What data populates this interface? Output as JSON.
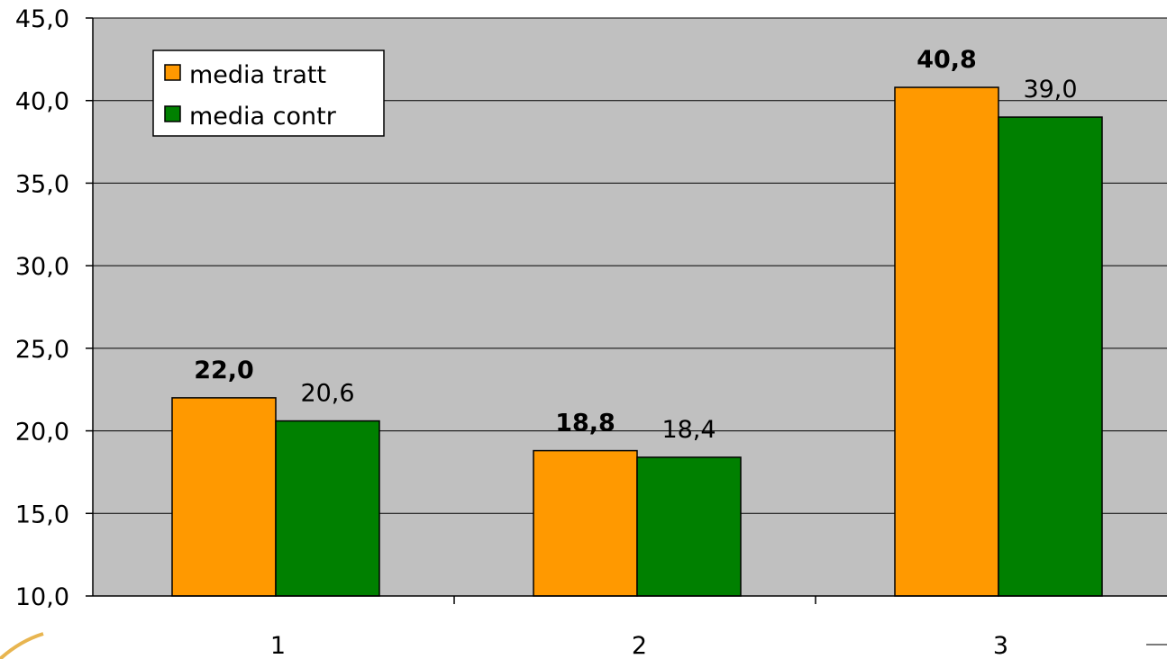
{
  "chart_data": {
    "type": "bar",
    "categories": [
      "1",
      "2",
      "3"
    ],
    "series": [
      {
        "name": "media tratt",
        "values": [
          22.0,
          18.8,
          40.8
        ],
        "labels": [
          "22,0",
          "18,8",
          "40,8"
        ],
        "label_weight": "bold",
        "color": "#ff9900"
      },
      {
        "name": "media contr",
        "values": [
          20.6,
          18.4,
          39.0
        ],
        "labels": [
          "20,6",
          "18,4",
          "39,0"
        ],
        "label_weight": "normal",
        "color": "#008000"
      }
    ],
    "ylim": [
      10.0,
      45.0
    ],
    "yticks": [
      10,
      15,
      20,
      25,
      30,
      35,
      40,
      45
    ],
    "ytick_labels": [
      "10,0",
      "15,0",
      "20,0",
      "25,0",
      "30,0",
      "35,0",
      "40,0",
      "45,0"
    ],
    "grid": true,
    "plot_background": "#c0c0c0",
    "legend": {
      "placement": "top-left",
      "items": [
        "media tratt",
        "media contr"
      ]
    },
    "title": "",
    "xlabel": "",
    "ylabel": ""
  }
}
